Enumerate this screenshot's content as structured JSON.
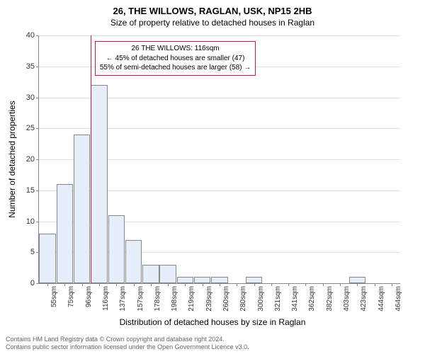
{
  "title_main": "26, THE WILLOWS, RAGLAN, USK, NP15 2HB",
  "title_sub": "Size of property relative to detached houses in Raglan",
  "ylabel": "Number of detached properties",
  "xlabel": "Distribution of detached houses by size in Raglan",
  "chart": {
    "type": "bar",
    "ylim": [
      0,
      40
    ],
    "ytick_step": 5,
    "bar_fill": "#e6eefb",
    "bar_border": "#888888",
    "grid_color": "#e0e0e0",
    "background_color": "#ffffff",
    "marker_color": "#dc143c",
    "marker_x_index": 3,
    "categories": [
      "55sqm",
      "75sqm",
      "96sqm",
      "116sqm",
      "137sqm",
      "157sqm",
      "178sqm",
      "198sqm",
      "219sqm",
      "239sqm",
      "260sqm",
      "280sqm",
      "300sqm",
      "321sqm",
      "341sqm",
      "362sqm",
      "382sqm",
      "403sqm",
      "423sqm",
      "444sqm",
      "464sqm"
    ],
    "values": [
      8,
      16,
      24,
      32,
      11,
      7,
      3,
      3,
      1,
      1,
      1,
      0,
      1,
      0,
      0,
      0,
      0,
      0,
      1,
      0,
      0
    ]
  },
  "callout": {
    "line1": "26 THE WILLOWS: 116sqm",
    "line2": "← 45% of detached houses are smaller (47)",
    "line3": "55% of semi-detached houses are larger (58) →"
  },
  "footer": {
    "line1": "Contains HM Land Registry data © Crown copyright and database right 2024.",
    "line2": "Contains public sector information licensed under the Open Government Licence v3.0."
  }
}
